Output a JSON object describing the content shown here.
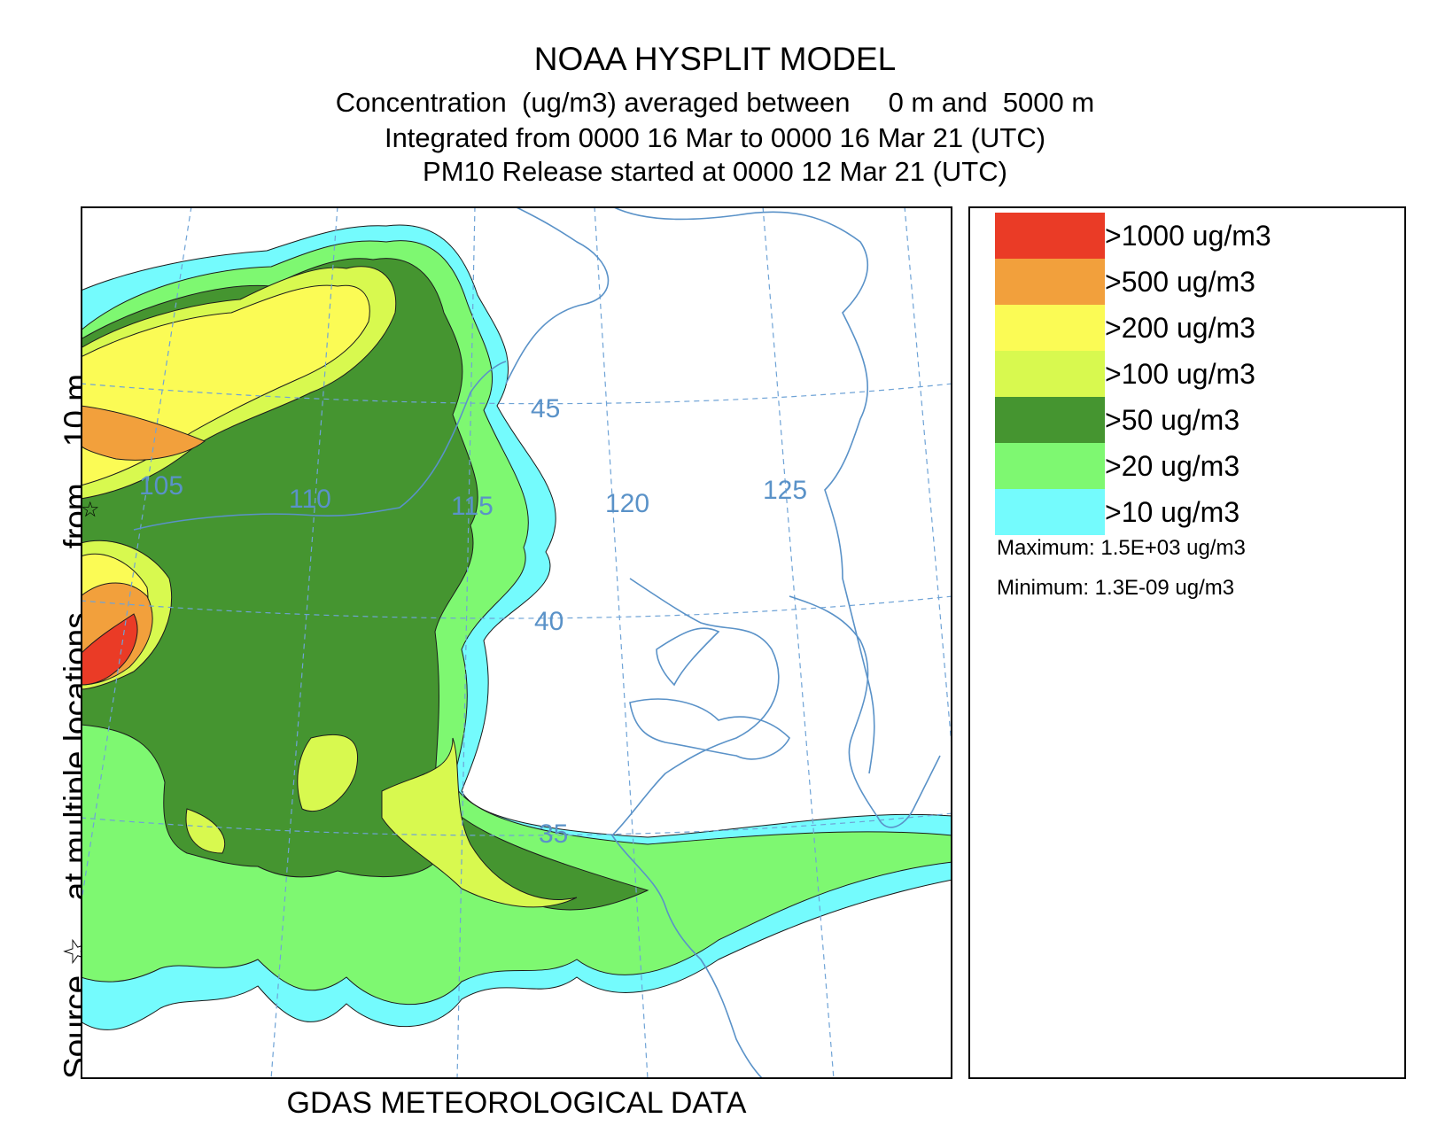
{
  "title": {
    "line1": "NOAA HYSPLIT MODEL",
    "line2": "Concentration  (ug/m3) averaged between     0 m and  5000 m",
    "line3": "Integrated from 0000 16 Mar to 0000 16 Mar 21 (UTC)",
    "line4": "PM10 Release started at 0000 12 Mar 21 (UTC)"
  },
  "side_label": "Source ☆    at multiple locations       from    10 m",
  "footer": "GDAS METEOROLOGICAL DATA",
  "map": {
    "longitude_labels": [
      "105",
      "110",
      "115",
      "120",
      "125"
    ],
    "latitude_labels": [
      "45",
      "40",
      "35"
    ],
    "label_color": "#5a92c8",
    "coast_color": "#5a92c8",
    "grid_color": "#6fa3d6"
  },
  "legend": {
    "items": [
      {
        "label": ">1000 ug/m3",
        "color": "#ea3b26"
      },
      {
        "label": ">500 ug/m3",
        "color": "#f2a03c"
      },
      {
        "label": ">200 ug/m3",
        "color": "#fbfb55"
      },
      {
        "label": ">100 ug/m3",
        "color": "#d8f94f"
      },
      {
        "label": ">50 ug/m3",
        "color": "#459530"
      },
      {
        "label": ">20 ug/m3",
        "color": "#7ef871"
      },
      {
        "label": ">10 ug/m3",
        "color": "#74fbfd"
      }
    ],
    "maximum": "Maximum: 1.5E+03 ug/m3",
    "minimum": "Minimum: 1.3E-09 ug/m3"
  }
}
